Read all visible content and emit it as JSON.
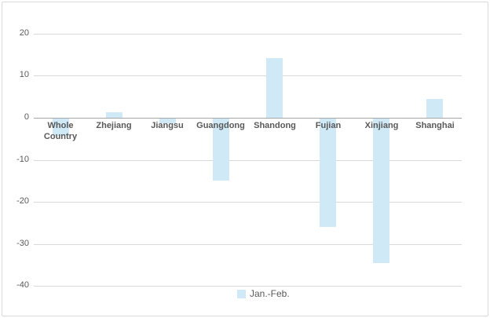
{
  "chart_data": {
    "type": "bar",
    "title": "",
    "xlabel": "",
    "ylabel": "",
    "categories": [
      "Whole Country",
      "Zhejiang",
      "Jiangsu",
      "Guangdong",
      "Shandong",
      "Fujian",
      "Xinjiang",
      "Shanghai"
    ],
    "series": [
      {
        "name": "Jan.-Feb.",
        "values": [
          -4.1,
          1.3,
          -1.1,
          -14.7,
          14.1,
          -25.8,
          -34.4,
          4.5
        ]
      }
    ],
    "y_ticks": [
      20,
      10,
      0,
      -10,
      -20,
      -30,
      -40
    ],
    "ylim": [
      -40,
      20
    ],
    "grid": true,
    "legend_position": "bottom-center"
  },
  "colors": {
    "bar": "#cfe9f7",
    "gridline": "#d9d9d9",
    "axis_line": "#a6a6a6",
    "text": "#595959",
    "border": "#d9d9d9",
    "background": "#ffffff"
  }
}
